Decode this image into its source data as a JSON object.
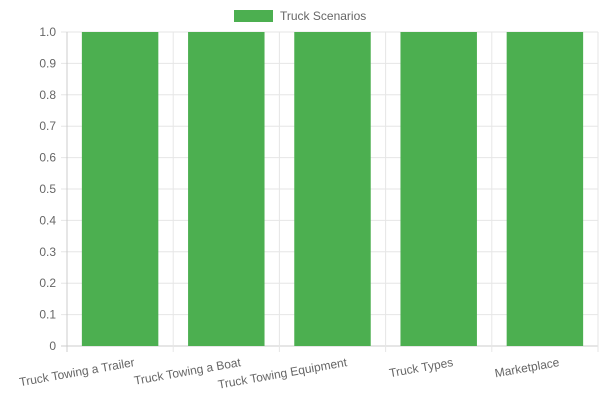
{
  "chart_data": {
    "type": "bar",
    "categories": [
      "Truck Towing a Trailer",
      "Truck Towing a Boat",
      "Truck Towing Equipment",
      "Truck Types",
      "Marketplace"
    ],
    "series": [
      {
        "name": "Truck Scenarios",
        "values": [
          1,
          1,
          1,
          1,
          1
        ],
        "color": "#4caf50"
      }
    ],
    "y_ticks": [
      "0",
      "0.1",
      "0.2",
      "0.3",
      "0.4",
      "0.5",
      "0.6",
      "0.7",
      "0.8",
      "0.9",
      "1.0"
    ],
    "ylim": [
      0,
      1
    ],
    "grid": true,
    "legend_position": "top-center"
  }
}
